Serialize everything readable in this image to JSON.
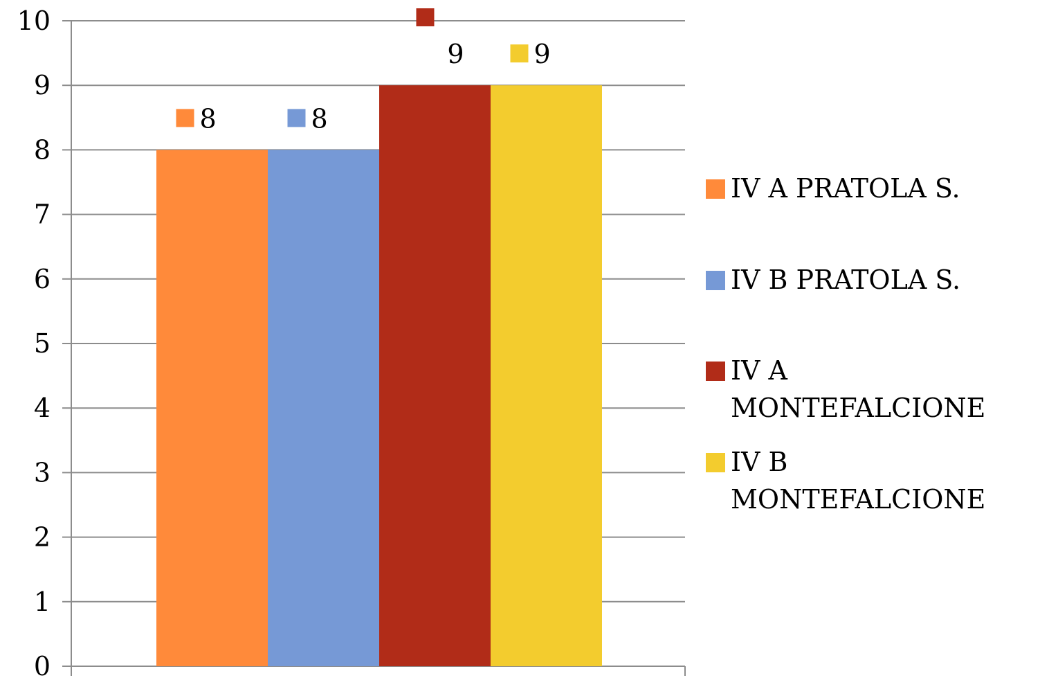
{
  "chart_data": {
    "type": "bar",
    "title": "",
    "xlabel": "",
    "ylabel": "",
    "ylim": [
      0,
      10
    ],
    "y_ticks": [
      "0",
      "1",
      "2",
      "3",
      "4",
      "5",
      "6",
      "7",
      "8",
      "9",
      "10"
    ],
    "grid": true,
    "legend_position": "right",
    "series": [
      {
        "name": "IV A PRATOLA S.",
        "value": 8,
        "label": "8",
        "color": "#FF8A3A"
      },
      {
        "name": "IV B PRATOLA S.",
        "value": 8,
        "label": "8",
        "color": "#7699D6"
      },
      {
        "name": "IV A MONTEFALCIONE",
        "value": 9,
        "label": "9",
        "color": "#B12C18"
      },
      {
        "name": "IV B MONTEFALCIONE",
        "value": 9,
        "label": "9",
        "color": "#F3CC2E"
      }
    ]
  }
}
